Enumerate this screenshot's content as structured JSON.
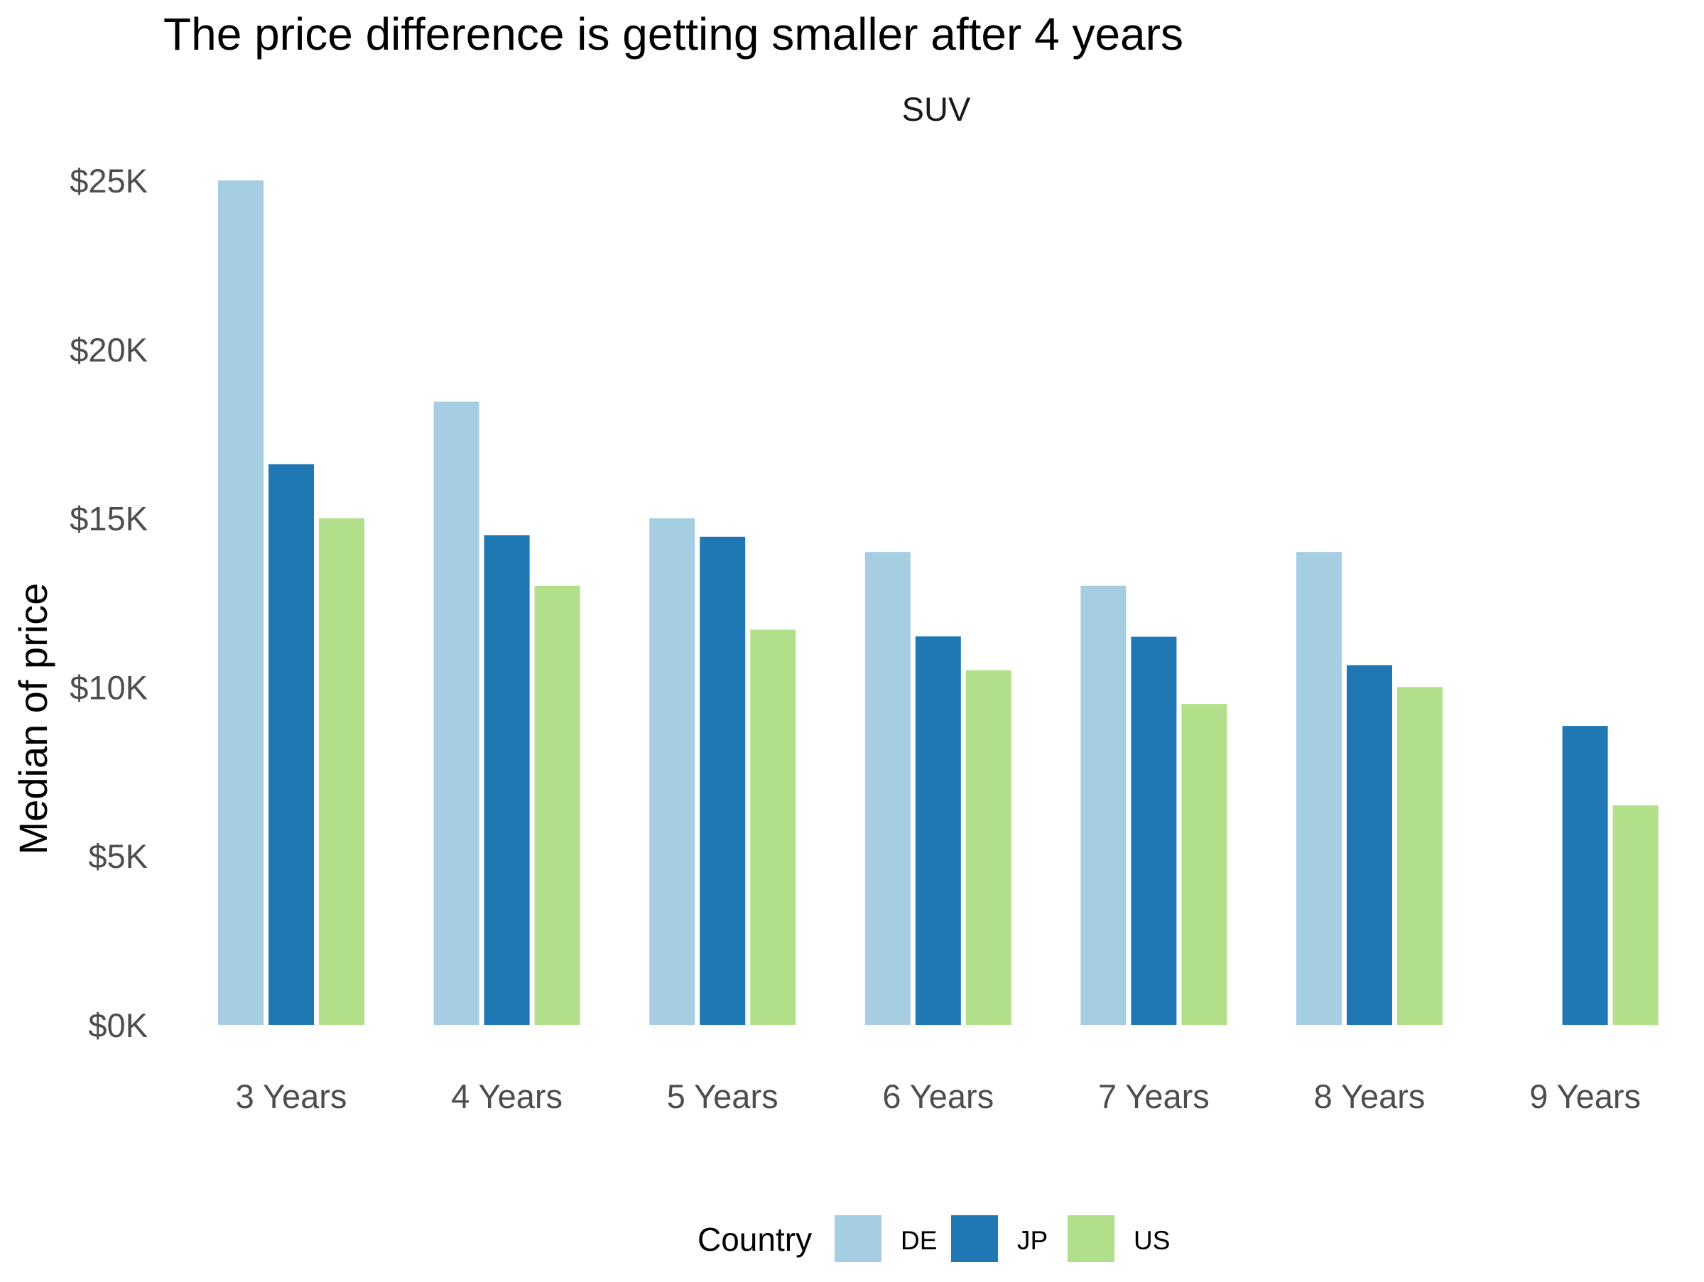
{
  "chart_data": {
    "type": "bar",
    "title": "The price difference is getting smaller after 4 years",
    "facet": "SUV",
    "xlabel": "",
    "ylabel": "Median of price",
    "categories": [
      "3 Years",
      "4 Years",
      "5 Years",
      "6 Years",
      "7 Years",
      "8 Years",
      "9 Years"
    ],
    "yticks": [
      0,
      5000,
      10000,
      15000,
      20000,
      25000
    ],
    "ytick_labels": [
      "$0K",
      "$5K",
      "$10K",
      "$15K",
      "$20K",
      "$25K"
    ],
    "ylim": [
      0,
      25000
    ],
    "grid": false,
    "legend": {
      "title": "Country",
      "position": "bottom"
    },
    "series": [
      {
        "name": "DE",
        "color": "#a6cee3",
        "values": [
          25000,
          18450,
          15000,
          14000,
          13000,
          14000,
          null
        ]
      },
      {
        "name": "JP",
        "color": "#1f78b4",
        "values": [
          16600,
          14500,
          14450,
          11500,
          11490,
          10650,
          8850
        ]
      },
      {
        "name": "US",
        "color": "#b2df8a",
        "values": [
          15000,
          13000,
          11700,
          10500,
          9500,
          10000,
          6500
        ]
      }
    ]
  }
}
